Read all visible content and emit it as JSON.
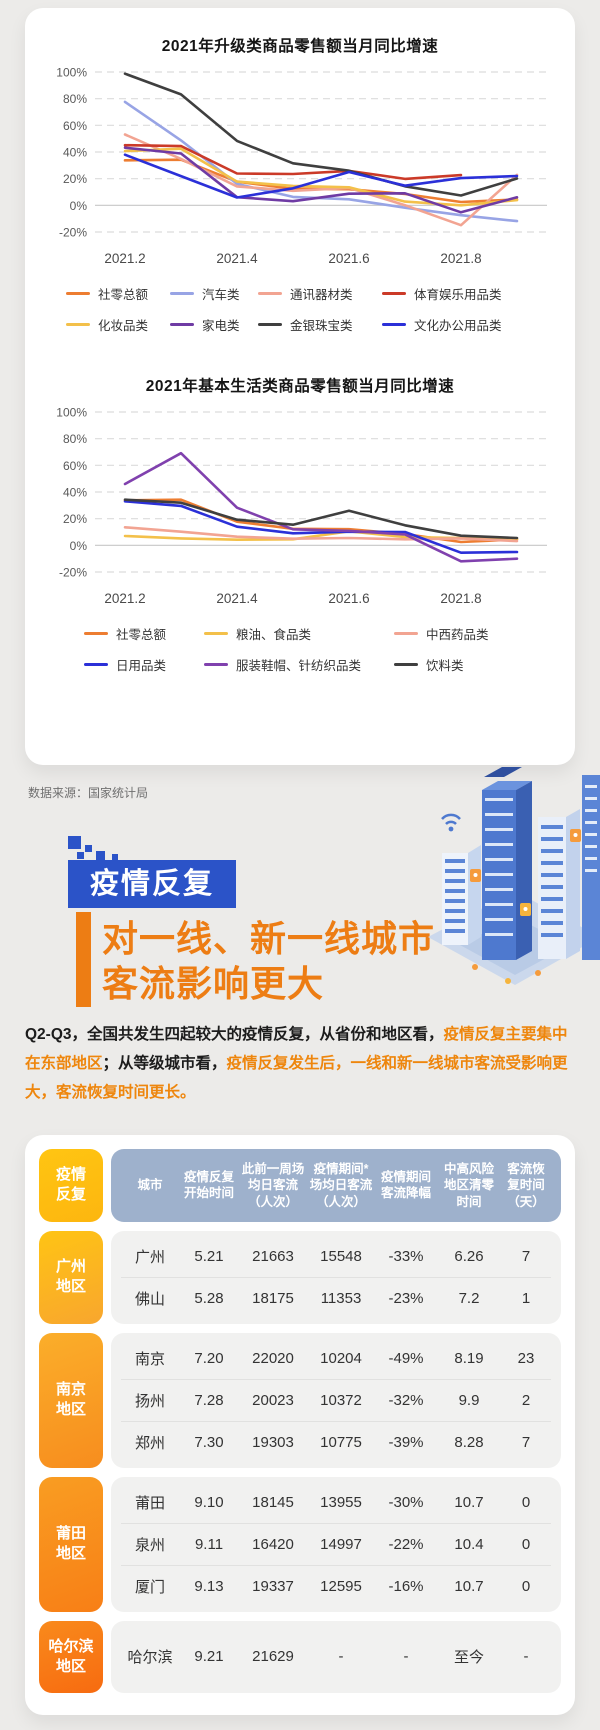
{
  "source_note": "数据来源：国家统计局",
  "hero": {
    "badge": "疫情反复",
    "title_line1": "对一线、新一线城市",
    "title_line2": "客流影响更大"
  },
  "paragraph": [
    {
      "text": "Q2-Q3，全国共发生四起较大的疫情反复，从省份和地区看，",
      "color": "dark"
    },
    {
      "text": "疫情反复主要集中在东部地区",
      "color": "orange"
    },
    {
      "text": "；从等级城市看，",
      "color": "dark"
    },
    {
      "text": "疫情反复发生后，一线和新一线城市客流受影响更大，客流恢复时间更长。",
      "color": "orange"
    }
  ],
  "colors": {
    "page_bg": "#ECEBE9",
    "accent_blue": "#2B53C8",
    "accent_orange": "#ED7D14",
    "table_header_bg": "#9EB1CC",
    "table_row_bg": "#F1F1F0"
  },
  "chart_data": [
    {
      "type": "line",
      "title": "2021年升级类商品零售额当月同比增速",
      "unit": "%",
      "x": [
        "2021.2",
        "2021.3",
        "2021.4",
        "2021.5",
        "2021.6",
        "2021.7",
        "2021.8",
        "2021.9"
      ],
      "x_tick_labels": [
        "2021.2",
        "2021.4",
        "2021.6",
        "2021.8"
      ],
      "tick_indices": [
        0,
        2,
        4,
        6
      ],
      "y_ticks": [
        100,
        80,
        60,
        40,
        20,
        0,
        -20
      ],
      "ylim": [
        -20,
        100
      ],
      "grid": "dashed-horizontal",
      "legend_position": "bottom",
      "legend_per_row": 4,
      "series": [
        {
          "name": "社零总额",
          "color": "#ED7D31",
          "values": [
            33.8,
            34.2,
            17.7,
            12.4,
            12.1,
            8.5,
            2.5,
            4.4
          ]
        },
        {
          "name": "汽车类",
          "color": "#98A4E5",
          "values": [
            77.6,
            48.7,
            16.1,
            6.3,
            4.5,
            -1.8,
            -7.4,
            -11.8
          ]
        },
        {
          "name": "通讯器材类",
          "color": "#F2A492",
          "values": [
            53.1,
            34.8,
            14.2,
            10.9,
            13.1,
            0.1,
            -14.9,
            22.8
          ]
        },
        {
          "name": "体育娱乐用品类",
          "color": "#CB3A28",
          "values": [
            45.1,
            44.4,
            23.9,
            23.5,
            25.8,
            19.8,
            22.7,
            null
          ]
        },
        {
          "name": "化妆品类",
          "color": "#F3C04A",
          "values": [
            40.7,
            42.5,
            17.8,
            14.6,
            13.5,
            2.8,
            0.0,
            3.9
          ]
        },
        {
          "name": "家电类",
          "color": "#6F3BA4",
          "values": [
            43.2,
            38.9,
            6.1,
            3.1,
            8.7,
            9.0,
            -5.2,
            6.0
          ]
        },
        {
          "name": "金银珠宝类",
          "color": "#3F3F3F",
          "values": [
            98.7,
            83.2,
            48.3,
            31.5,
            26.0,
            14.3,
            7.4,
            20.1
          ]
        },
        {
          "name": "文化办公用品类",
          "color": "#2B30D8",
          "values": [
            38.0,
            21.9,
            5.9,
            12.8,
            25.0,
            14.7,
            20.4,
            22.0
          ]
        }
      ]
    },
    {
      "type": "line",
      "title": "2021年基本生活类商品零售额当月同比增速",
      "unit": "%",
      "x": [
        "2021.2",
        "2021.3",
        "2021.4",
        "2021.5",
        "2021.6",
        "2021.7",
        "2021.8",
        "2021.9"
      ],
      "x_tick_labels": [
        "2021.2",
        "2021.4",
        "2021.6",
        "2021.8"
      ],
      "tick_indices": [
        0,
        2,
        4,
        6
      ],
      "y_ticks": [
        100,
        80,
        60,
        40,
        20,
        0,
        -20
      ],
      "ylim": [
        -20,
        100
      ],
      "grid": "dashed-horizontal",
      "legend_position": "bottom",
      "legend_per_row": 3,
      "series": [
        {
          "name": "社零总额",
          "color": "#ED7D31",
          "values": [
            33.8,
            34.2,
            17.7,
            12.4,
            12.1,
            8.5,
            2.5,
            4.4
          ]
        },
        {
          "name": "粮油、食品类",
          "color": "#F3C04A",
          "values": [
            7.0,
            5.2,
            4.2,
            4.5,
            10.5,
            6.2,
            5.5,
            5.0
          ]
        },
        {
          "name": "中西药品类",
          "color": "#F2A492",
          "values": [
            13.5,
            10.2,
            6.5,
            5.0,
            5.5,
            4.5,
            5.2,
            3.2
          ]
        },
        {
          "name": "日用品类",
          "color": "#2B30D8",
          "values": [
            33.0,
            29.6,
            14.0,
            9.0,
            10.2,
            10.0,
            -5.5,
            -5.0
          ]
        },
        {
          "name": "服装鞋帽、针纺织品类",
          "color": "#8041AE",
          "values": [
            46.0,
            69.1,
            28.2,
            12.0,
            10.8,
            8.2,
            -12.0,
            -10.0
          ]
        },
        {
          "name": "饮料类",
          "color": "#3F3F3F",
          "values": [
            34.2,
            32.0,
            19.2,
            15.5,
            26.0,
            15.0,
            7.2,
            5.5
          ]
        }
      ]
    }
  ],
  "table": {
    "corner_label": "疫情\n反复",
    "corner_colors": [
      "#FFC512",
      "#FDB60F"
    ],
    "columns": [
      "城市",
      "疫情反复开始时间",
      "此前一周场均日客流（人次）",
      "疫情期间*场均日客流（人次）",
      "疫情期间客流降幅",
      "中高风险地区清零时间",
      "客流恢复时间（天）"
    ],
    "groups": [
      {
        "label": "广州\n地区",
        "colors": [
          "#FFC414",
          "#F8A62E"
        ],
        "rows": [
          [
            "广州",
            "5.21",
            "21663",
            "15548",
            "-33%",
            "6.26",
            "7"
          ],
          [
            "佛山",
            "5.28",
            "18175",
            "11353",
            "-23%",
            "7.2",
            "1"
          ]
        ]
      },
      {
        "label": "南京\n地区",
        "colors": [
          "#FBAE2A",
          "#F78D1E"
        ],
        "rows": [
          [
            "南京",
            "7.20",
            "22020",
            "10204",
            "-49%",
            "8.19",
            "23"
          ],
          [
            "扬州",
            "7.28",
            "20023",
            "10372",
            "-32%",
            "9.9",
            "2"
          ],
          [
            "郑州",
            "7.30",
            "19303",
            "10775",
            "-39%",
            "8.28",
            "7"
          ]
        ]
      },
      {
        "label": "莆田\n地区",
        "colors": [
          "#F99D22",
          "#F87F16"
        ],
        "rows": [
          [
            "莆田",
            "9.10",
            "18145",
            "13955",
            "-30%",
            "10.7",
            "0"
          ],
          [
            "泉州",
            "9.11",
            "16420",
            "14997",
            "-22%",
            "10.4",
            "0"
          ],
          [
            "厦门",
            "9.13",
            "19337",
            "12595",
            "-16%",
            "10.7",
            "0"
          ]
        ]
      },
      {
        "label": "哈尔滨\n地区",
        "colors": [
          "#F98A1C",
          "#F76B10"
        ],
        "rows": [
          [
            "哈尔滨",
            "9.21",
            "21629",
            "-",
            "-",
            "至今",
            "-"
          ]
        ]
      }
    ]
  }
}
